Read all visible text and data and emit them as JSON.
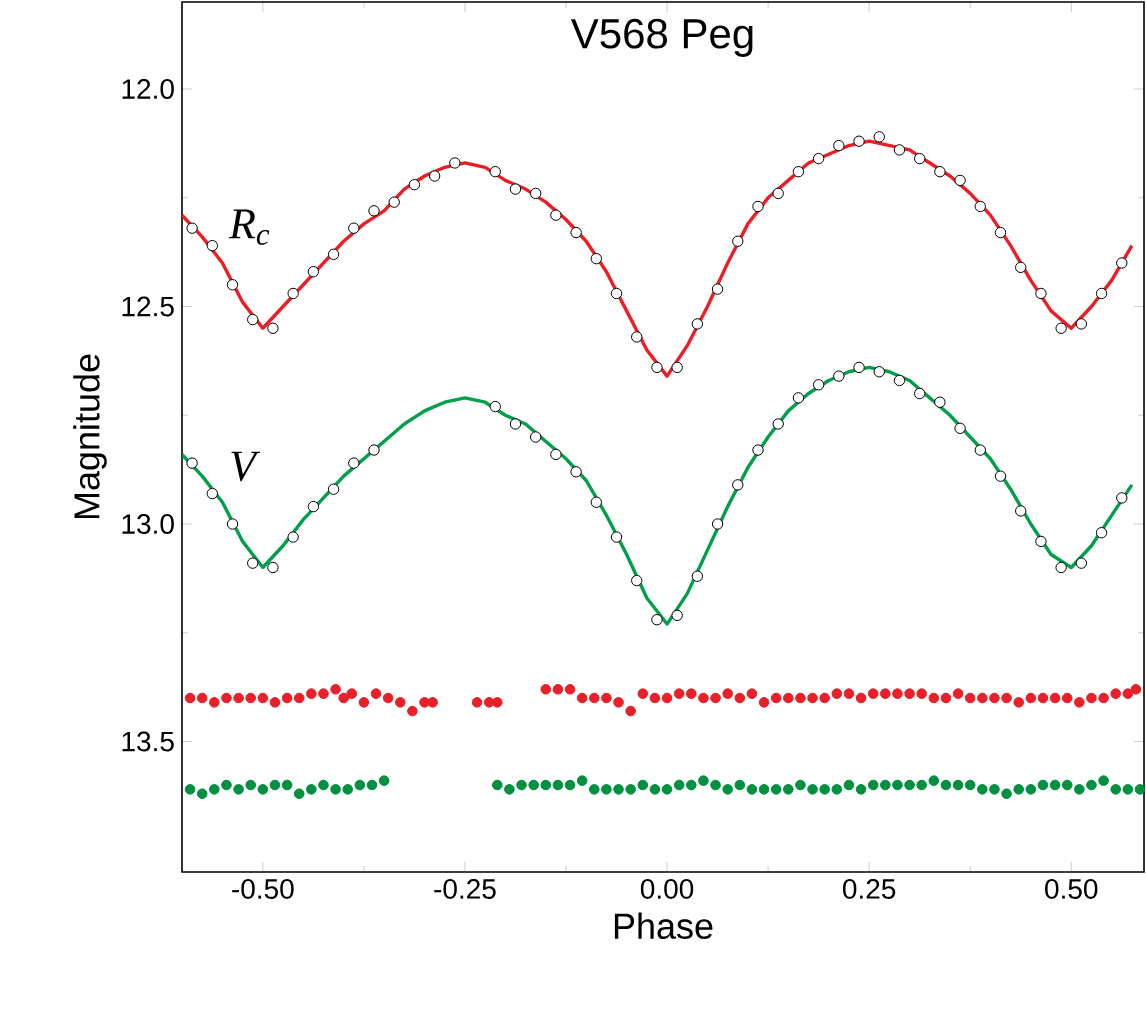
{
  "chart_data": {
    "type": "scatter",
    "title": "V568 Peg",
    "xlabel": "Phase",
    "ylabel": "Magnitude",
    "xlim": [
      -0.6,
      0.59
    ],
    "ylim": [
      13.8,
      11.8
    ],
    "xticks": [
      {
        "value": -0.5,
        "label": "-0.50"
      },
      {
        "value": -0.25,
        "label": "-0.25"
      },
      {
        "value": 0,
        "label": "0.00"
      },
      {
        "value": 0.25,
        "label": "0.25"
      },
      {
        "value": 0.5,
        "label": "0.50"
      }
    ],
    "yticks": [
      {
        "value": 12,
        "label": "12.0"
      },
      {
        "value": 12.5,
        "label": "12.5"
      },
      {
        "value": 13,
        "label": "13.0"
      },
      {
        "value": 13.5,
        "label": "13.5"
      }
    ],
    "marker": "circle",
    "line_style": "solid",
    "series": [
      {
        "color": "#000000",
        "x": [
          -0.5875,
          -0.5625,
          -0.5375,
          -0.5125,
          -0.4875,
          -0.4625,
          -0.4375,
          -0.4125,
          -0.3875,
          -0.3625,
          -0.3375,
          -0.3125,
          -0.2875,
          -0.2625,
          -0.2125,
          -0.1875,
          -0.1625,
          -0.1375,
          -0.1125,
          -0.0875,
          -0.0625,
          -0.0375,
          -0.0125,
          0.0125,
          0.0375,
          0.0625,
          0.0875,
          0.1125,
          0.1375,
          0.1625,
          0.1875,
          0.2125,
          0.2375,
          0.2625,
          0.2875,
          0.3125,
          0.3375,
          0.3625,
          0.3875,
          0.4125,
          0.4375,
          0.4625,
          0.4875,
          0.5125,
          0.5375,
          0.5625
        ],
        "values": [
          12.32,
          12.36,
          12.45,
          12.53,
          12.55,
          12.47,
          12.42,
          12.38,
          12.32,
          12.28,
          12.26,
          12.22,
          12.2,
          12.17,
          12.19,
          12.23,
          12.24,
          12.29,
          12.33,
          12.39,
          12.47,
          12.57,
          12.64,
          12.64,
          12.54,
          12.46,
          12.35,
          12.27,
          12.24,
          12.19,
          12.16,
          12.13,
          12.12,
          12.11,
          12.14,
          12.16,
          12.19,
          12.21,
          12.27,
          12.33,
          12.41,
          12.47,
          12.55,
          12.54,
          12.47,
          12.4
        ]
      },
      {
        "type": "line",
        "marker": "none",
        "name": "R$_{c}$",
        "color": "#ee1c24",
        "x": [
          -0.6,
          -0.575,
          -0.55,
          -0.525,
          -0.5,
          -0.475,
          -0.45,
          -0.425,
          -0.4,
          -0.375,
          -0.35,
          -0.325,
          -0.3,
          -0.275,
          -0.25,
          -0.225,
          -0.2,
          -0.175,
          -0.15,
          -0.125,
          -0.1,
          -0.075,
          -0.05,
          -0.025,
          0,
          0.025,
          0.05,
          0.075,
          0.1,
          0.125,
          0.15,
          0.175,
          0.2,
          0.225,
          0.25,
          0.275,
          0.3,
          0.325,
          0.35,
          0.375,
          0.4,
          0.425,
          0.45,
          0.475,
          0.5,
          0.525,
          0.55,
          0.575
        ],
        "values": [
          12.29,
          12.34,
          12.4,
          12.49,
          12.55,
          12.5,
          12.45,
          12.4,
          12.35,
          12.31,
          12.28,
          12.23,
          12.2,
          12.18,
          12.17,
          12.18,
          12.21,
          12.23,
          12.26,
          12.3,
          12.35,
          12.42,
          12.51,
          12.6,
          12.66,
          12.59,
          12.5,
          12.4,
          12.31,
          12.25,
          12.21,
          12.17,
          12.15,
          12.13,
          12.12,
          12.13,
          12.14,
          12.17,
          12.2,
          12.24,
          12.29,
          12.36,
          12.44,
          12.51,
          12.55,
          12.5,
          12.44,
          12.36
        ]
      },
      {
        "color": "#000000",
        "x": [
          -0.5875,
          -0.5625,
          -0.5375,
          -0.5125,
          -0.4875,
          -0.4625,
          -0.4375,
          -0.4125,
          -0.3875,
          -0.3625,
          -0.2125,
          -0.1875,
          -0.1625,
          -0.1375,
          -0.1125,
          -0.0875,
          -0.0625,
          -0.0375,
          -0.0125,
          0.0125,
          0.0375,
          0.0625,
          0.0875,
          0.1125,
          0.1375,
          0.1625,
          0.1875,
          0.2125,
          0.2375,
          0.2625,
          0.2875,
          0.3125,
          0.3375,
          0.3625,
          0.3875,
          0.4125,
          0.4375,
          0.4625,
          0.4875,
          0.5125,
          0.5375,
          0.5625
        ],
        "values": [
          12.86,
          12.93,
          13.0,
          13.09,
          13.1,
          13.03,
          12.96,
          12.92,
          12.86,
          12.83,
          12.73,
          12.77,
          12.8,
          12.84,
          12.88,
          12.95,
          13.03,
          13.13,
          13.22,
          13.21,
          13.12,
          13.0,
          12.91,
          12.83,
          12.77,
          12.71,
          12.68,
          12.66,
          12.64,
          12.65,
          12.67,
          12.7,
          12.72,
          12.78,
          12.83,
          12.89,
          12.97,
          13.04,
          13.1,
          13.09,
          13.02,
          12.94
        ]
      },
      {
        "type": "line",
        "marker": "none",
        "name": "V",
        "color": "#00a04a",
        "x": [
          -0.6,
          -0.575,
          -0.55,
          -0.525,
          -0.5,
          -0.475,
          -0.45,
          -0.425,
          -0.4,
          -0.375,
          -0.35,
          -0.325,
          -0.3,
          -0.275,
          -0.25,
          -0.225,
          -0.2,
          -0.175,
          -0.15,
          -0.125,
          -0.1,
          -0.075,
          -0.05,
          -0.025,
          0,
          0.025,
          0.05,
          0.075,
          0.1,
          0.125,
          0.15,
          0.175,
          0.2,
          0.225,
          0.25,
          0.275,
          0.3,
          0.325,
          0.35,
          0.375,
          0.4,
          0.425,
          0.45,
          0.475,
          0.5,
          0.525,
          0.55,
          0.575
        ],
        "values": [
          12.84,
          12.89,
          12.95,
          13.04,
          13.1,
          13.05,
          12.99,
          12.94,
          12.89,
          12.85,
          12.81,
          12.77,
          12.74,
          12.72,
          12.71,
          12.72,
          12.75,
          12.77,
          12.81,
          12.85,
          12.9,
          12.98,
          13.07,
          13.17,
          13.23,
          13.16,
          13.06,
          12.96,
          12.87,
          12.8,
          12.74,
          12.7,
          12.67,
          12.65,
          12.64,
          12.65,
          12.67,
          12.71,
          12.75,
          12.8,
          12.85,
          12.92,
          13.0,
          13.07,
          13.1,
          13.05,
          12.98,
          12.91
        ]
      },
      {
        "color": "#e8202a",
        "x": [
          -0.59,
          -0.575,
          -0.56,
          -0.545,
          -0.53,
          -0.515,
          -0.5,
          -0.485,
          -0.47,
          -0.455,
          -0.44,
          -0.425,
          -0.41,
          -0.4,
          -0.39,
          -0.375,
          -0.36,
          -0.345,
          -0.33,
          -0.315,
          -0.3,
          -0.29,
          -0.235,
          -0.22,
          -0.21,
          -0.15,
          -0.135,
          -0.12,
          -0.105,
          -0.09,
          -0.075,
          -0.06,
          -0.045,
          -0.03,
          -0.015,
          0,
          0.015,
          0.03,
          0.045,
          0.06,
          0.075,
          0.09,
          0.105,
          0.12,
          0.135,
          0.15,
          0.165,
          0.18,
          0.195,
          0.21,
          0.225,
          0.24,
          0.255,
          0.27,
          0.285,
          0.3,
          0.315,
          0.33,
          0.345,
          0.36,
          0.375,
          0.39,
          0.405,
          0.42,
          0.435,
          0.45,
          0.465,
          0.48,
          0.495,
          0.51,
          0.525,
          0.54,
          0.555,
          0.57,
          0.58
        ],
        "values": [
          13.4,
          13.4,
          13.41,
          13.4,
          13.4,
          13.4,
          13.4,
          13.41,
          13.4,
          13.4,
          13.39,
          13.39,
          13.38,
          13.4,
          13.39,
          13.41,
          13.39,
          13.4,
          13.41,
          13.43,
          13.41,
          13.41,
          13.41,
          13.41,
          13.41,
          13.38,
          13.38,
          13.38,
          13.4,
          13.4,
          13.4,
          13.41,
          13.43,
          13.39,
          13.4,
          13.4,
          13.39,
          13.39,
          13.4,
          13.4,
          13.39,
          13.4,
          13.39,
          13.41,
          13.4,
          13.4,
          13.4,
          13.4,
          13.4,
          13.39,
          13.39,
          13.4,
          13.39,
          13.39,
          13.39,
          13.39,
          13.39,
          13.4,
          13.4,
          13.39,
          13.4,
          13.4,
          13.4,
          13.4,
          13.41,
          13.4,
          13.4,
          13.4,
          13.4,
          13.41,
          13.4,
          13.4,
          13.39,
          13.39,
          13.38
        ]
      },
      {
        "color": "#009040",
        "x": [
          -0.59,
          -0.575,
          -0.56,
          -0.545,
          -0.53,
          -0.515,
          -0.5,
          -0.485,
          -0.47,
          -0.455,
          -0.44,
          -0.425,
          -0.41,
          -0.395,
          -0.38,
          -0.365,
          -0.35,
          -0.21,
          -0.195,
          -0.18,
          -0.165,
          -0.15,
          -0.135,
          -0.12,
          -0.105,
          -0.09,
          -0.075,
          -0.06,
          -0.045,
          -0.03,
          -0.015,
          0,
          0.015,
          0.03,
          0.045,
          0.06,
          0.075,
          0.09,
          0.105,
          0.12,
          0.135,
          0.15,
          0.165,
          0.18,
          0.195,
          0.21,
          0.225,
          0.24,
          0.255,
          0.27,
          0.285,
          0.3,
          0.315,
          0.33,
          0.345,
          0.36,
          0.375,
          0.39,
          0.405,
          0.42,
          0.435,
          0.45,
          0.465,
          0.48,
          0.495,
          0.51,
          0.525,
          0.54,
          0.555,
          0.57,
          0.585
        ],
        "values": [
          13.61,
          13.62,
          13.61,
          13.6,
          13.61,
          13.6,
          13.61,
          13.6,
          13.6,
          13.62,
          13.61,
          13.6,
          13.61,
          13.61,
          13.6,
          13.6,
          13.59,
          13.6,
          13.61,
          13.6,
          13.6,
          13.6,
          13.6,
          13.6,
          13.59,
          13.61,
          13.61,
          13.61,
          13.61,
          13.6,
          13.61,
          13.61,
          13.6,
          13.6,
          13.59,
          13.6,
          13.61,
          13.6,
          13.61,
          13.61,
          13.61,
          13.61,
          13.6,
          13.61,
          13.61,
          13.61,
          13.6,
          13.61,
          13.6,
          13.6,
          13.6,
          13.6,
          13.6,
          13.59,
          13.6,
          13.6,
          13.6,
          13.61,
          13.61,
          13.62,
          13.61,
          13.61,
          13.6,
          13.6,
          13.6,
          13.61,
          13.6,
          13.59,
          13.61,
          13.61,
          13.61
        ]
      }
    ]
  }
}
